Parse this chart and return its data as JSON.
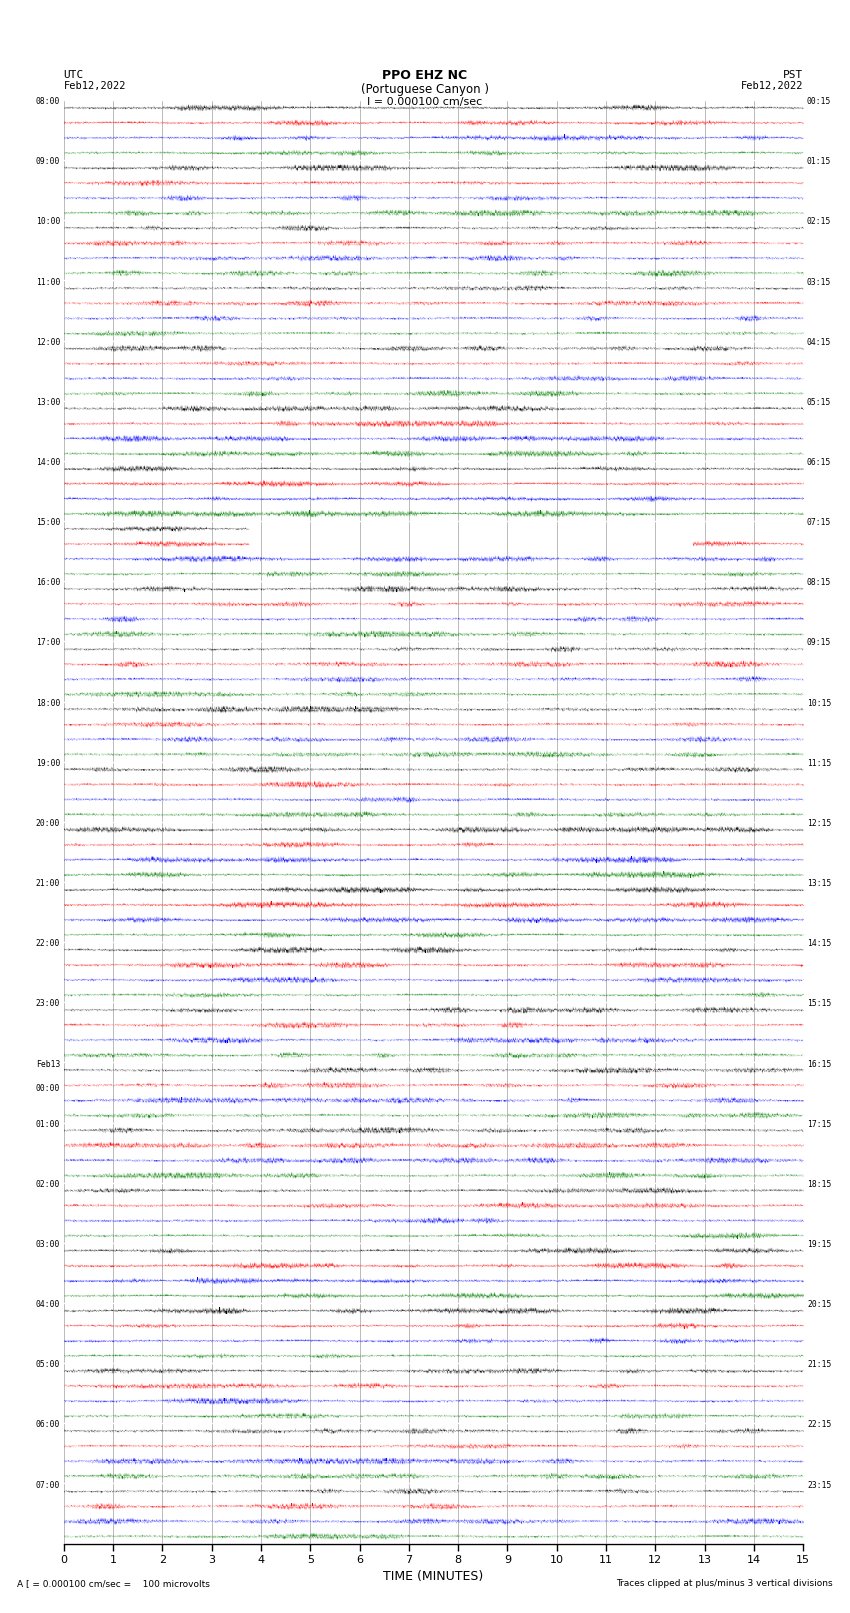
{
  "title_line1": "PPO EHZ NC",
  "title_line2": "(Portuguese Canyon )",
  "scale_label": "I = 0.000100 cm/sec",
  "footer_left": "A [ = 0.000100 cm/sec =    100 microvolts",
  "footer_right": "Traces clipped at plus/minus 3 vertical divisions",
  "left_times": [
    "08:00",
    "09:00",
    "10:00",
    "11:00",
    "12:00",
    "13:00",
    "14:00",
    "15:00",
    "16:00",
    "17:00",
    "18:00",
    "19:00",
    "20:00",
    "21:00",
    "22:00",
    "23:00",
    "Feb13\n00:00",
    "01:00",
    "02:00",
    "03:00",
    "04:00",
    "05:00",
    "06:00",
    "07:00"
  ],
  "right_times": [
    "00:15",
    "01:15",
    "02:15",
    "03:15",
    "04:15",
    "05:15",
    "06:15",
    "07:15",
    "08:15",
    "09:15",
    "10:15",
    "11:15",
    "12:15",
    "13:15",
    "14:15",
    "15:15",
    "16:15",
    "17:15",
    "18:15",
    "19:15",
    "20:15",
    "21:15",
    "22:15",
    "23:15"
  ],
  "n_rows": 24,
  "n_cols_minutes": 15,
  "colors": [
    "black",
    "red",
    "blue",
    "green"
  ],
  "bg_color": "white",
  "xlabel": "TIME (MINUTES)"
}
